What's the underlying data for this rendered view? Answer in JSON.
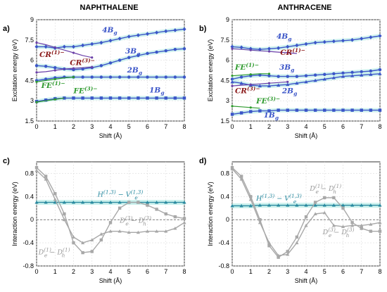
{
  "panel_titles": [
    "NAPHTHALENE",
    "ANTHRACENE"
  ],
  "panel_labels": [
    "a)",
    "b)",
    "c)",
    "d)"
  ],
  "colors": {
    "state_blue": "#3b55c8",
    "state_purple": "#6a3fa8",
    "cr_red": "#8b1a1a",
    "fe_green": "#2e9a2e",
    "teal": "#2a8aa0",
    "grey": "#a8a8a8",
    "band": "#bfeee8"
  },
  "chart_data": [
    {
      "id": "a",
      "type": "line",
      "title": "NAPHTHALENE",
      "xlabel": "Shift (Å)",
      "ylabel": "Excitation energy (eV)",
      "xlim": [
        0,
        8
      ],
      "ylim": [
        1.5,
        9
      ],
      "xticks": [
        "0",
        "1",
        "2",
        "3",
        "4",
        "5",
        "6",
        "7",
        "8"
      ],
      "yticks": [
        "1.5",
        "3",
        "4.5",
        "6",
        "7.5",
        "9"
      ],
      "grid": true,
      "series": [
        {
          "name": "4Bg",
          "color": "#3b55c8",
          "marker": "diamond",
          "x": [
            0,
            0.5,
            1,
            1.5,
            2,
            2.5,
            3,
            3.5,
            4,
            4.5,
            5,
            5.5,
            6,
            6.5,
            7,
            7.5,
            8
          ],
          "y": [
            7.0,
            7.0,
            6.9,
            7.0,
            7.0,
            7.1,
            7.2,
            7.3,
            7.45,
            7.6,
            7.75,
            7.85,
            7.95,
            8.05,
            8.15,
            8.22,
            8.3
          ]
        },
        {
          "name": "3Bg",
          "color": "#3b55c8",
          "marker": "circle",
          "x": [
            0,
            0.5,
            1,
            1.5,
            2,
            2.5,
            3,
            3.5,
            4,
            4.5,
            5,
            5.5,
            6,
            6.5,
            7,
            7.5,
            8
          ],
          "y": [
            5.6,
            5.55,
            5.45,
            5.35,
            5.3,
            5.35,
            5.45,
            5.6,
            5.8,
            6.0,
            6.2,
            6.35,
            6.5,
            6.6,
            6.7,
            6.8,
            6.85
          ]
        },
        {
          "name": "2Bg",
          "color": "#3b55c8",
          "marker": "circle",
          "x": [
            0,
            0.5,
            1,
            1.5,
            2,
            2.5,
            3,
            3.5,
            4,
            4.5,
            5,
            5.5,
            6,
            6.5,
            7,
            7.5,
            8
          ],
          "y": [
            4.5,
            4.6,
            4.7,
            4.75,
            4.75,
            4.75,
            4.75,
            4.75,
            4.75,
            4.75,
            4.75,
            4.75,
            4.75,
            4.75,
            4.75,
            4.75,
            4.75
          ]
        },
        {
          "name": "1Bg",
          "color": "#3b55c8",
          "marker": "square",
          "x": [
            0,
            0.5,
            1,
            1.5,
            2,
            2.5,
            3,
            3.5,
            4,
            4.5,
            5,
            5.5,
            6,
            6.5,
            7,
            7.5,
            8
          ],
          "y": [
            2.95,
            3.05,
            3.15,
            3.2,
            3.2,
            3.2,
            3.2,
            3.2,
            3.2,
            3.2,
            3.2,
            3.2,
            3.2,
            3.2,
            3.2,
            3.2,
            3.2
          ]
        },
        {
          "name": "CR(1)−",
          "color": "#6a3fa8",
          "marker": "none",
          "x": [
            0,
            0.5,
            1,
            1.5,
            2,
            2.5,
            3
          ],
          "y": [
            7.3,
            7.15,
            6.95,
            6.75,
            6.55,
            6.35,
            6.2
          ]
        },
        {
          "name": "CR(3)−",
          "color": "#6a3fa8",
          "marker": "none",
          "x": [
            0,
            0.5,
            1,
            1.5,
            2,
            2.5,
            3
          ],
          "y": [
            5.1,
            5.15,
            5.25,
            5.35,
            5.4,
            5.45,
            5.5
          ]
        },
        {
          "name": "FE(1)−",
          "color": "#2e9a2e",
          "marker": "none",
          "x": [
            0,
            0.5,
            1,
            1.5,
            2
          ],
          "y": [
            4.4,
            4.5,
            4.6,
            4.7,
            4.75
          ]
        },
        {
          "name": "FE(3)−",
          "color": "#2e9a2e",
          "marker": "none",
          "x": [
            0,
            0.5,
            1,
            1.5
          ],
          "y": [
            2.9,
            3.0,
            3.1,
            3.2
          ]
        }
      ],
      "annotations": [
        {
          "text": "4B",
          "sub": "g",
          "color": "#3b55c8",
          "x": 3.55,
          "y": 8.05
        },
        {
          "text": "3B",
          "sub": "g",
          "color": "#3b55c8",
          "x": 4.8,
          "y": 6.5
        },
        {
          "text": "2B",
          "sub": "g",
          "color": "#3b55c8",
          "x": 4.9,
          "y": 5.1
        },
        {
          "text": "1B",
          "sub": "g",
          "color": "#3b55c8",
          "x": 6.1,
          "y": 3.6
        },
        {
          "text": "CR",
          "sup": "(1)−",
          "color": "#8b1a1a",
          "x": 0.15,
          "y": 6.25
        },
        {
          "text": "CR",
          "sup": "(3)−",
          "color": "#8b1a1a",
          "x": 1.8,
          "y": 5.65
        },
        {
          "text": "FE",
          "sup": "(1)−",
          "color": "#2e9a2e",
          "x": 0.25,
          "y": 3.95
        },
        {
          "text": "FE",
          "sup": "(3)−",
          "color": "#2e9a2e",
          "x": 2.0,
          "y": 3.55
        }
      ]
    },
    {
      "id": "b",
      "type": "line",
      "title": "ANTHRACENE",
      "xlabel": "Shift (Å)",
      "ylabel": "Excitation energy (eV)",
      "xlim": [
        0,
        8
      ],
      "ylim": [
        1.5,
        9
      ],
      "xticks": [
        "0",
        "1",
        "2",
        "3",
        "4",
        "5",
        "6",
        "7",
        "8"
      ],
      "yticks": [
        "1.5",
        "3",
        "4.5",
        "6",
        "7.5",
        "9"
      ],
      "grid": true,
      "series": [
        {
          "name": "4Bg",
          "color": "#3b55c8",
          "marker": "diamond",
          "x": [
            0,
            0.5,
            1,
            1.5,
            2,
            2.5,
            3,
            3.5,
            4,
            4.5,
            5,
            5.5,
            6,
            6.5,
            7,
            7.5,
            8
          ],
          "y": [
            7.0,
            6.95,
            6.85,
            6.8,
            6.85,
            6.9,
            7.0,
            7.1,
            7.2,
            7.3,
            7.35,
            7.4,
            7.45,
            7.5,
            7.6,
            7.7,
            7.8
          ]
        },
        {
          "name": "3Bg",
          "color": "#3b55c8",
          "marker": "circle",
          "x": [
            0,
            0.5,
            1,
            1.5,
            2,
            2.5,
            3,
            3.5,
            4,
            4.5,
            5,
            5.5,
            6,
            6.5,
            7,
            7.5,
            8
          ],
          "y": [
            4.6,
            4.75,
            4.85,
            4.9,
            4.85,
            4.8,
            4.8,
            4.8,
            4.85,
            4.9,
            4.95,
            5.0,
            5.05,
            5.1,
            5.15,
            5.2,
            5.3
          ]
        },
        {
          "name": "2Bg",
          "color": "#3b55c8",
          "marker": "triangle",
          "x": [
            0,
            0.5,
            1,
            1.5,
            2,
            2.5,
            3,
            3.5,
            4,
            4.5,
            5,
            5.5,
            6,
            6.5,
            7,
            7.5,
            8
          ],
          "y": [
            4.4,
            4.3,
            4.15,
            4.1,
            4.1,
            4.15,
            4.2,
            4.3,
            4.4,
            4.5,
            4.6,
            4.7,
            4.8,
            4.85,
            4.9,
            4.95,
            5.0
          ]
        },
        {
          "name": "1Bg",
          "color": "#3b55c8",
          "marker": "square",
          "x": [
            0,
            0.5,
            1,
            1.5,
            2,
            2.5,
            3,
            3.5,
            4,
            4.5,
            5,
            5.5,
            6,
            6.5,
            7,
            7.5,
            8
          ],
          "y": [
            2.0,
            2.1,
            2.2,
            2.25,
            2.25,
            2.3,
            2.3,
            2.3,
            2.3,
            2.3,
            2.3,
            2.3,
            2.3,
            2.3,
            2.3,
            2.3,
            2.3
          ]
        },
        {
          "name": "CR(1)−",
          "color": "#6a3fa8",
          "marker": "none",
          "x": [
            0,
            0.5,
            1,
            1.5,
            2,
            2.5,
            3,
            3.5
          ],
          "y": [
            6.85,
            6.8,
            6.75,
            6.7,
            6.65,
            6.6,
            6.55,
            6.5
          ]
        },
        {
          "name": "CR(3)−",
          "color": "#6a3fa8",
          "marker": "none",
          "x": [
            0,
            0.5,
            1,
            1.5,
            2,
            2.5,
            3
          ],
          "y": [
            4.1,
            4.15,
            4.2,
            4.25,
            4.3,
            4.35,
            4.4
          ]
        },
        {
          "name": "FE(1)−",
          "color": "#2e9a2e",
          "marker": "none",
          "x": [
            0,
            0.5,
            1,
            1.5,
            2
          ],
          "y": [
            4.85,
            4.9,
            4.95,
            5.0,
            5.0
          ]
        },
        {
          "name": "FE(3)−",
          "color": "#2e9a2e",
          "marker": "none",
          "x": [
            0,
            0.5,
            1,
            1.5
          ],
          "y": [
            2.6,
            2.55,
            2.5,
            2.45
          ]
        }
      ],
      "annotations": [
        {
          "text": "4B",
          "sub": "g",
          "color": "#3b55c8",
          "x": 2.4,
          "y": 7.6
        },
        {
          "text": "CR",
          "sup": "(1)−",
          "color": "#8b1a1a",
          "x": 2.6,
          "y": 6.4
        },
        {
          "text": "FE",
          "sup": "(1)−",
          "color": "#2e9a2e",
          "x": 0.15,
          "y": 5.3
        },
        {
          "text": "3B",
          "sub": "g",
          "color": "#3b55c8",
          "x": 2.55,
          "y": 5.3
        },
        {
          "text": "CR",
          "sup": "(3)−",
          "color": "#8b1a1a",
          "x": 0.15,
          "y": 3.55
        },
        {
          "text": "2B",
          "sub": "g",
          "color": "#3b55c8",
          "x": 2.7,
          "y": 3.55
        },
        {
          "text": "FE",
          "sup": "(3)−",
          "color": "#2e9a2e",
          "x": 1.3,
          "y": 2.8
        },
        {
          "text": "1B",
          "sub": "g",
          "color": "#3b55c8",
          "x": 1.7,
          "y": 1.75
        }
      ]
    },
    {
      "id": "c",
      "type": "line",
      "xlabel": "Shift (Å)",
      "ylabel": "Interaction energy (eV)",
      "xlim": [
        0,
        8
      ],
      "ylim": [
        -0.8,
        1.0
      ],
      "xticks": [
        "0",
        "1",
        "2",
        "3",
        "4",
        "5",
        "6",
        "7",
        "8"
      ],
      "yticks": [
        "-0.8",
        "-0.4",
        "0",
        "0.4",
        "0.8"
      ],
      "grid": true,
      "series": [
        {
          "name": "H(1,3) − Ve(1,3)",
          "color": "#2a8aa0",
          "marker": "triangle",
          "x": [
            0,
            0.5,
            1,
            1.5,
            2,
            2.5,
            3,
            3.5,
            4,
            4.5,
            5,
            5.5,
            6,
            6.5,
            7,
            7.5,
            8
          ],
          "y": [
            0.3,
            0.3,
            0.3,
            0.3,
            0.3,
            0.3,
            0.3,
            0.3,
            0.3,
            0.3,
            0.3,
            0.3,
            0.3,
            0.3,
            0.3,
            0.3,
            0.3
          ]
        },
        {
          "name": "De(1) − Dh(1)",
          "color": "#a8a8a8",
          "marker": "square",
          "x": [
            0,
            0.5,
            1,
            1.5,
            2,
            2.5,
            3,
            3.5,
            4,
            4.5,
            5,
            5.5,
            6,
            6.5,
            7,
            7.5,
            8
          ],
          "y": [
            0.9,
            0.75,
            0.45,
            0.1,
            -0.4,
            -0.57,
            -0.55,
            -0.35,
            -0.05,
            0.2,
            0.3,
            0.3,
            0.25,
            0.18,
            0.1,
            0.05,
            0.02
          ]
        },
        {
          "name": "De(3) − Dh(3)",
          "color": "#a8a8a8",
          "marker": "triangle",
          "x": [
            0,
            0.5,
            1,
            1.5,
            2,
            2.5,
            3,
            3.5,
            4,
            4.5,
            5,
            5.5,
            6,
            6.5,
            7,
            7.5,
            8
          ],
          "y": [
            0.85,
            0.7,
            0.35,
            0.0,
            -0.3,
            -0.4,
            -0.35,
            -0.25,
            -0.2,
            -0.2,
            -0.22,
            -0.22,
            -0.2,
            -0.2,
            -0.2,
            -0.15,
            -0.05
          ]
        }
      ],
      "annotations": [
        {
          "text": "H",
          "sup": "(1,3)",
          "tail": " − V",
          "tail_sub": "e",
          "tail_sup": "(1,3)",
          "color": "#2a8aa0",
          "x": 3.3,
          "y": 0.4
        },
        {
          "text": "D",
          "sup": "(3)",
          "sub": "e",
          "tail": " − D",
          "tail_sub": "h",
          "tail_sup": "(3)",
          "color": "#999999",
          "x": 4.5,
          "y": -0.05
        },
        {
          "text": "D",
          "sup": "(1)",
          "sub": "e",
          "tail": " − D",
          "tail_sub": "h",
          "tail_sup": "(1)",
          "color": "#999999",
          "x": 0.1,
          "y": -0.6
        }
      ]
    },
    {
      "id": "d",
      "type": "line",
      "xlabel": "Shift (Å)",
      "ylabel": "Interaction energy (eV)",
      "xlim": [
        0,
        8
      ],
      "ylim": [
        -0.8,
        1.0
      ],
      "xticks": [
        "0",
        "1",
        "2",
        "3",
        "4",
        "5",
        "6",
        "7",
        "8"
      ],
      "yticks": [
        "-0.8",
        "-0.4",
        "0",
        "0.4",
        "0.8"
      ],
      "grid": true,
      "series": [
        {
          "name": "H(1,3) − Ve(1,3)",
          "color": "#2a8aa0",
          "marker": "triangle",
          "x": [
            0,
            0.5,
            1,
            1.5,
            2,
            2.5,
            3,
            3.5,
            4,
            4.5,
            5,
            5.5,
            6,
            6.5,
            7,
            7.5,
            8
          ],
          "y": [
            0.24,
            0.24,
            0.24,
            0.25,
            0.25,
            0.25,
            0.25,
            0.25,
            0.25,
            0.25,
            0.25,
            0.25,
            0.25,
            0.25,
            0.25,
            0.25,
            0.25
          ]
        },
        {
          "name": "De(1) − Dh(1)",
          "color": "#a8a8a8",
          "marker": "square",
          "x": [
            0,
            0.5,
            1,
            1.5,
            2,
            2.5,
            3,
            3.5,
            4,
            4.5,
            5,
            5.5,
            6,
            6.5,
            7,
            7.5,
            8
          ],
          "y": [
            0.9,
            0.75,
            0.4,
            0.0,
            -0.45,
            -0.65,
            -0.55,
            -0.3,
            0.05,
            0.3,
            0.38,
            0.38,
            0.2,
            -0.05,
            -0.15,
            -0.2,
            -0.2
          ]
        },
        {
          "name": "De(3) − Dh(3)",
          "color": "#a8a8a8",
          "marker": "triangle",
          "x": [
            0,
            0.5,
            1,
            1.5,
            2,
            2.5,
            3,
            3.5,
            4,
            4.5,
            5,
            5.5,
            6,
            6.5,
            7,
            7.5,
            8
          ],
          "y": [
            0.88,
            0.7,
            0.35,
            -0.05,
            -0.4,
            -0.62,
            -0.6,
            -0.4,
            -0.1,
            0.1,
            0.12,
            -0.1,
            -0.12,
            -0.1,
            -0.1,
            -0.08,
            -0.05
          ]
        }
      ],
      "annotations": [
        {
          "text": "H",
          "sup": "(1,3)",
          "tail": " − V",
          "tail_sub": "e",
          "tail_sup": "(1,3)",
          "color": "#2a8aa0",
          "x": 1.3,
          "y": 0.33
        },
        {
          "text": "D",
          "sup": "(1)",
          "sub": "e",
          "tail": " − D",
          "tail_sub": "h",
          "tail_sup": "(1)",
          "color": "#999999",
          "x": 4.2,
          "y": 0.5
        },
        {
          "text": "D",
          "sup": "(3)",
          "sub": "e",
          "tail": " − D",
          "tail_sub": "h",
          "tail_sup": "(3)",
          "color": "#999999",
          "x": 4.9,
          "y": -0.25
        }
      ]
    }
  ]
}
